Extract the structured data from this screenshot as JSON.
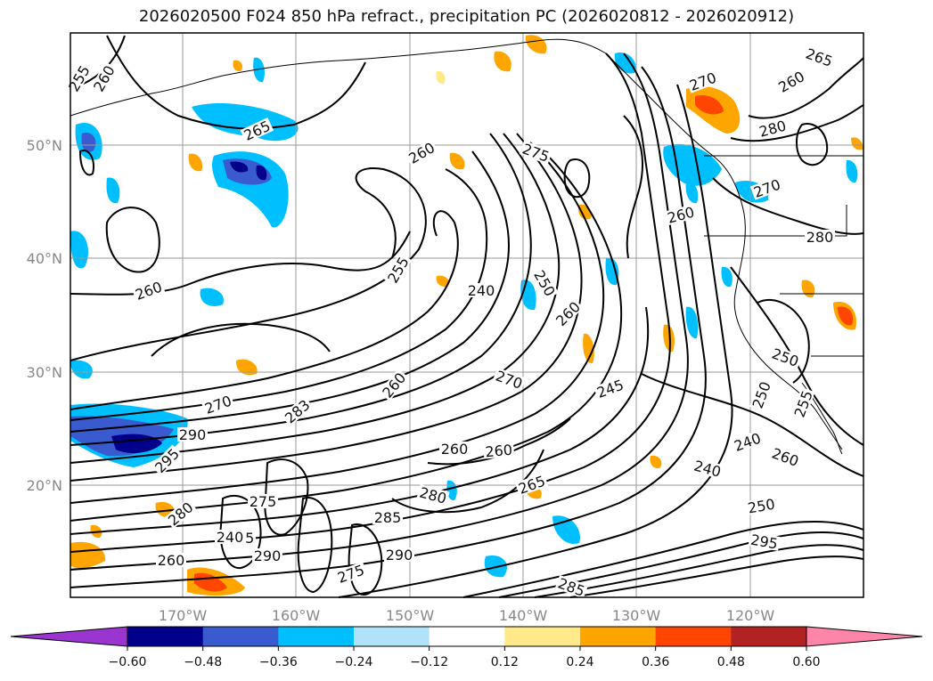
{
  "title": "2026020500 F024 850 hPa refract., precipitation PC (2026020812 - 2026020912)",
  "map": {
    "lat_labels": [
      "50°N",
      "40°N",
      "30°N",
      "20°N"
    ],
    "lon_labels": [
      "170°W",
      "160°W",
      "150°W",
      "140°W",
      "130°W",
      "120°W"
    ],
    "contour_labels": [
      "255",
      "260",
      "265",
      "260",
      "275",
      "270",
      "260",
      "265",
      "280",
      "260",
      "255",
      "240",
      "250",
      "260",
      "260",
      "270",
      "280",
      "270",
      "260",
      "245",
      "250",
      "270",
      "283",
      "290",
      "295",
      "250",
      "255",
      "260",
      "240",
      "280",
      "265",
      "240",
      "250",
      "285",
      "290",
      "295",
      "260",
      "275",
      "280",
      "285",
      "290",
      "275",
      "285",
      "260",
      "240",
      "260"
    ],
    "colors": {
      "contour": "#000000",
      "grid": "#9a9a9a",
      "coast": "#000000"
    }
  },
  "colorbar": {
    "ticks": [
      "−0.60",
      "−0.48",
      "−0.36",
      "−0.24",
      "−0.12",
      "0.12",
      "0.24",
      "0.36",
      "0.48",
      "0.60"
    ],
    "bins": [
      "#9b35cf",
      "#00008b",
      "#3a5bd0",
      "#00bfff",
      "#b0e2fa",
      "#ffffff",
      "#ffe98a",
      "#ffa500",
      "#ff4500",
      "#b22222",
      "#ff85a8"
    ]
  }
}
